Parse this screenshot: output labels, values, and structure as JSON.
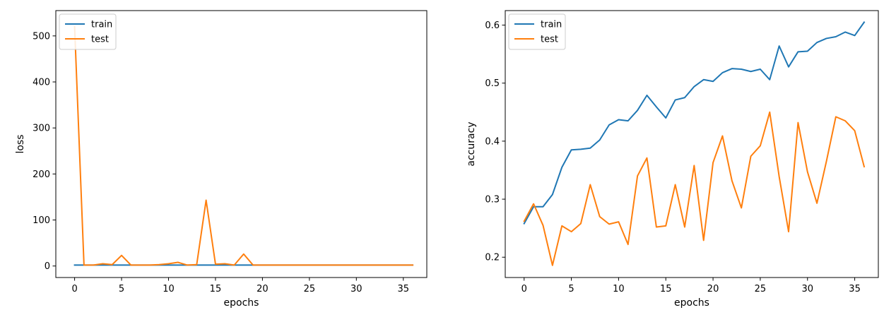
{
  "chart_data": [
    {
      "type": "line",
      "xlabel": "epochs",
      "ylabel": "loss",
      "xlim": [
        -2,
        37.5
      ],
      "ylim": [
        -25,
        555
      ],
      "xticks": [
        0,
        5,
        10,
        15,
        20,
        25,
        30,
        35
      ],
      "yticks": [
        0,
        100,
        200,
        300,
        400,
        500
      ],
      "grid": false,
      "legend_position": "top-left",
      "x": [
        0,
        1,
        2,
        3,
        4,
        5,
        6,
        7,
        8,
        9,
        10,
        11,
        12,
        13,
        14,
        15,
        16,
        17,
        18,
        19,
        20,
        21,
        22,
        23,
        24,
        25,
        26,
        27,
        28,
        29,
        30,
        31,
        32,
        33,
        34,
        35,
        36
      ],
      "series": [
        {
          "name": "train",
          "color": "#1f77b4",
          "values": [
            2,
            2,
            2,
            2,
            2,
            2,
            2,
            2,
            2,
            2,
            2,
            2,
            2,
            2,
            2,
            2,
            2,
            2,
            2,
            2,
            2,
            2,
            2,
            2,
            2,
            2,
            2,
            2,
            2,
            2,
            2,
            2,
            2,
            2,
            2,
            2,
            2
          ]
        },
        {
          "name": "test",
          "color": "#ff7f0e",
          "values": [
            520,
            2,
            2,
            5,
            3,
            23,
            2,
            2,
            2,
            3,
            5,
            8,
            2,
            3,
            143,
            4,
            5,
            2,
            26,
            2,
            2,
            2,
            2,
            2,
            2,
            2,
            2,
            2,
            2,
            2,
            2,
            2,
            2,
            2,
            2,
            2,
            2
          ]
        }
      ]
    },
    {
      "type": "line",
      "xlabel": "epochs",
      "ylabel": "accuracy",
      "xlim": [
        -2,
        37.5
      ],
      "ylim": [
        0.165,
        0.625
      ],
      "xticks": [
        0,
        5,
        10,
        15,
        20,
        25,
        30,
        35
      ],
      "yticks": [
        0.2,
        0.3,
        0.4,
        0.5,
        0.6
      ],
      "ytick_labels": [
        "0.2",
        "0.3",
        "0.4",
        "0.5",
        "0.6"
      ],
      "grid": false,
      "legend_position": "top-left",
      "x": [
        0,
        1,
        2,
        3,
        4,
        5,
        6,
        7,
        8,
        9,
        10,
        11,
        12,
        13,
        14,
        15,
        16,
        17,
        18,
        19,
        20,
        21,
        22,
        23,
        24,
        25,
        26,
        27,
        28,
        29,
        30,
        31,
        32,
        33,
        34,
        35,
        36
      ],
      "series": [
        {
          "name": "train",
          "color": "#1f77b4",
          "values": [
            0.258,
            0.287,
            0.287,
            0.308,
            0.355,
            0.385,
            0.386,
            0.388,
            0.402,
            0.428,
            0.437,
            0.435,
            0.453,
            0.479,
            0.459,
            0.44,
            0.471,
            0.475,
            0.494,
            0.506,
            0.503,
            0.518,
            0.525,
            0.524,
            0.52,
            0.524,
            0.506,
            0.564,
            0.528,
            0.554,
            0.555,
            0.57,
            0.577,
            0.58,
            0.588,
            0.582,
            0.605
          ]
        },
        {
          "name": "test",
          "color": "#ff7f0e",
          "values": [
            0.262,
            0.292,
            0.255,
            0.186,
            0.254,
            0.244,
            0.258,
            0.325,
            0.27,
            0.257,
            0.261,
            0.222,
            0.34,
            0.371,
            0.252,
            0.254,
            0.325,
            0.252,
            0.358,
            0.229,
            0.363,
            0.409,
            0.332,
            0.285,
            0.374,
            0.392,
            0.45,
            0.339,
            0.244,
            0.432,
            0.347,
            0.293,
            0.365,
            0.442,
            0.435,
            0.418,
            0.356
          ]
        }
      ]
    }
  ]
}
